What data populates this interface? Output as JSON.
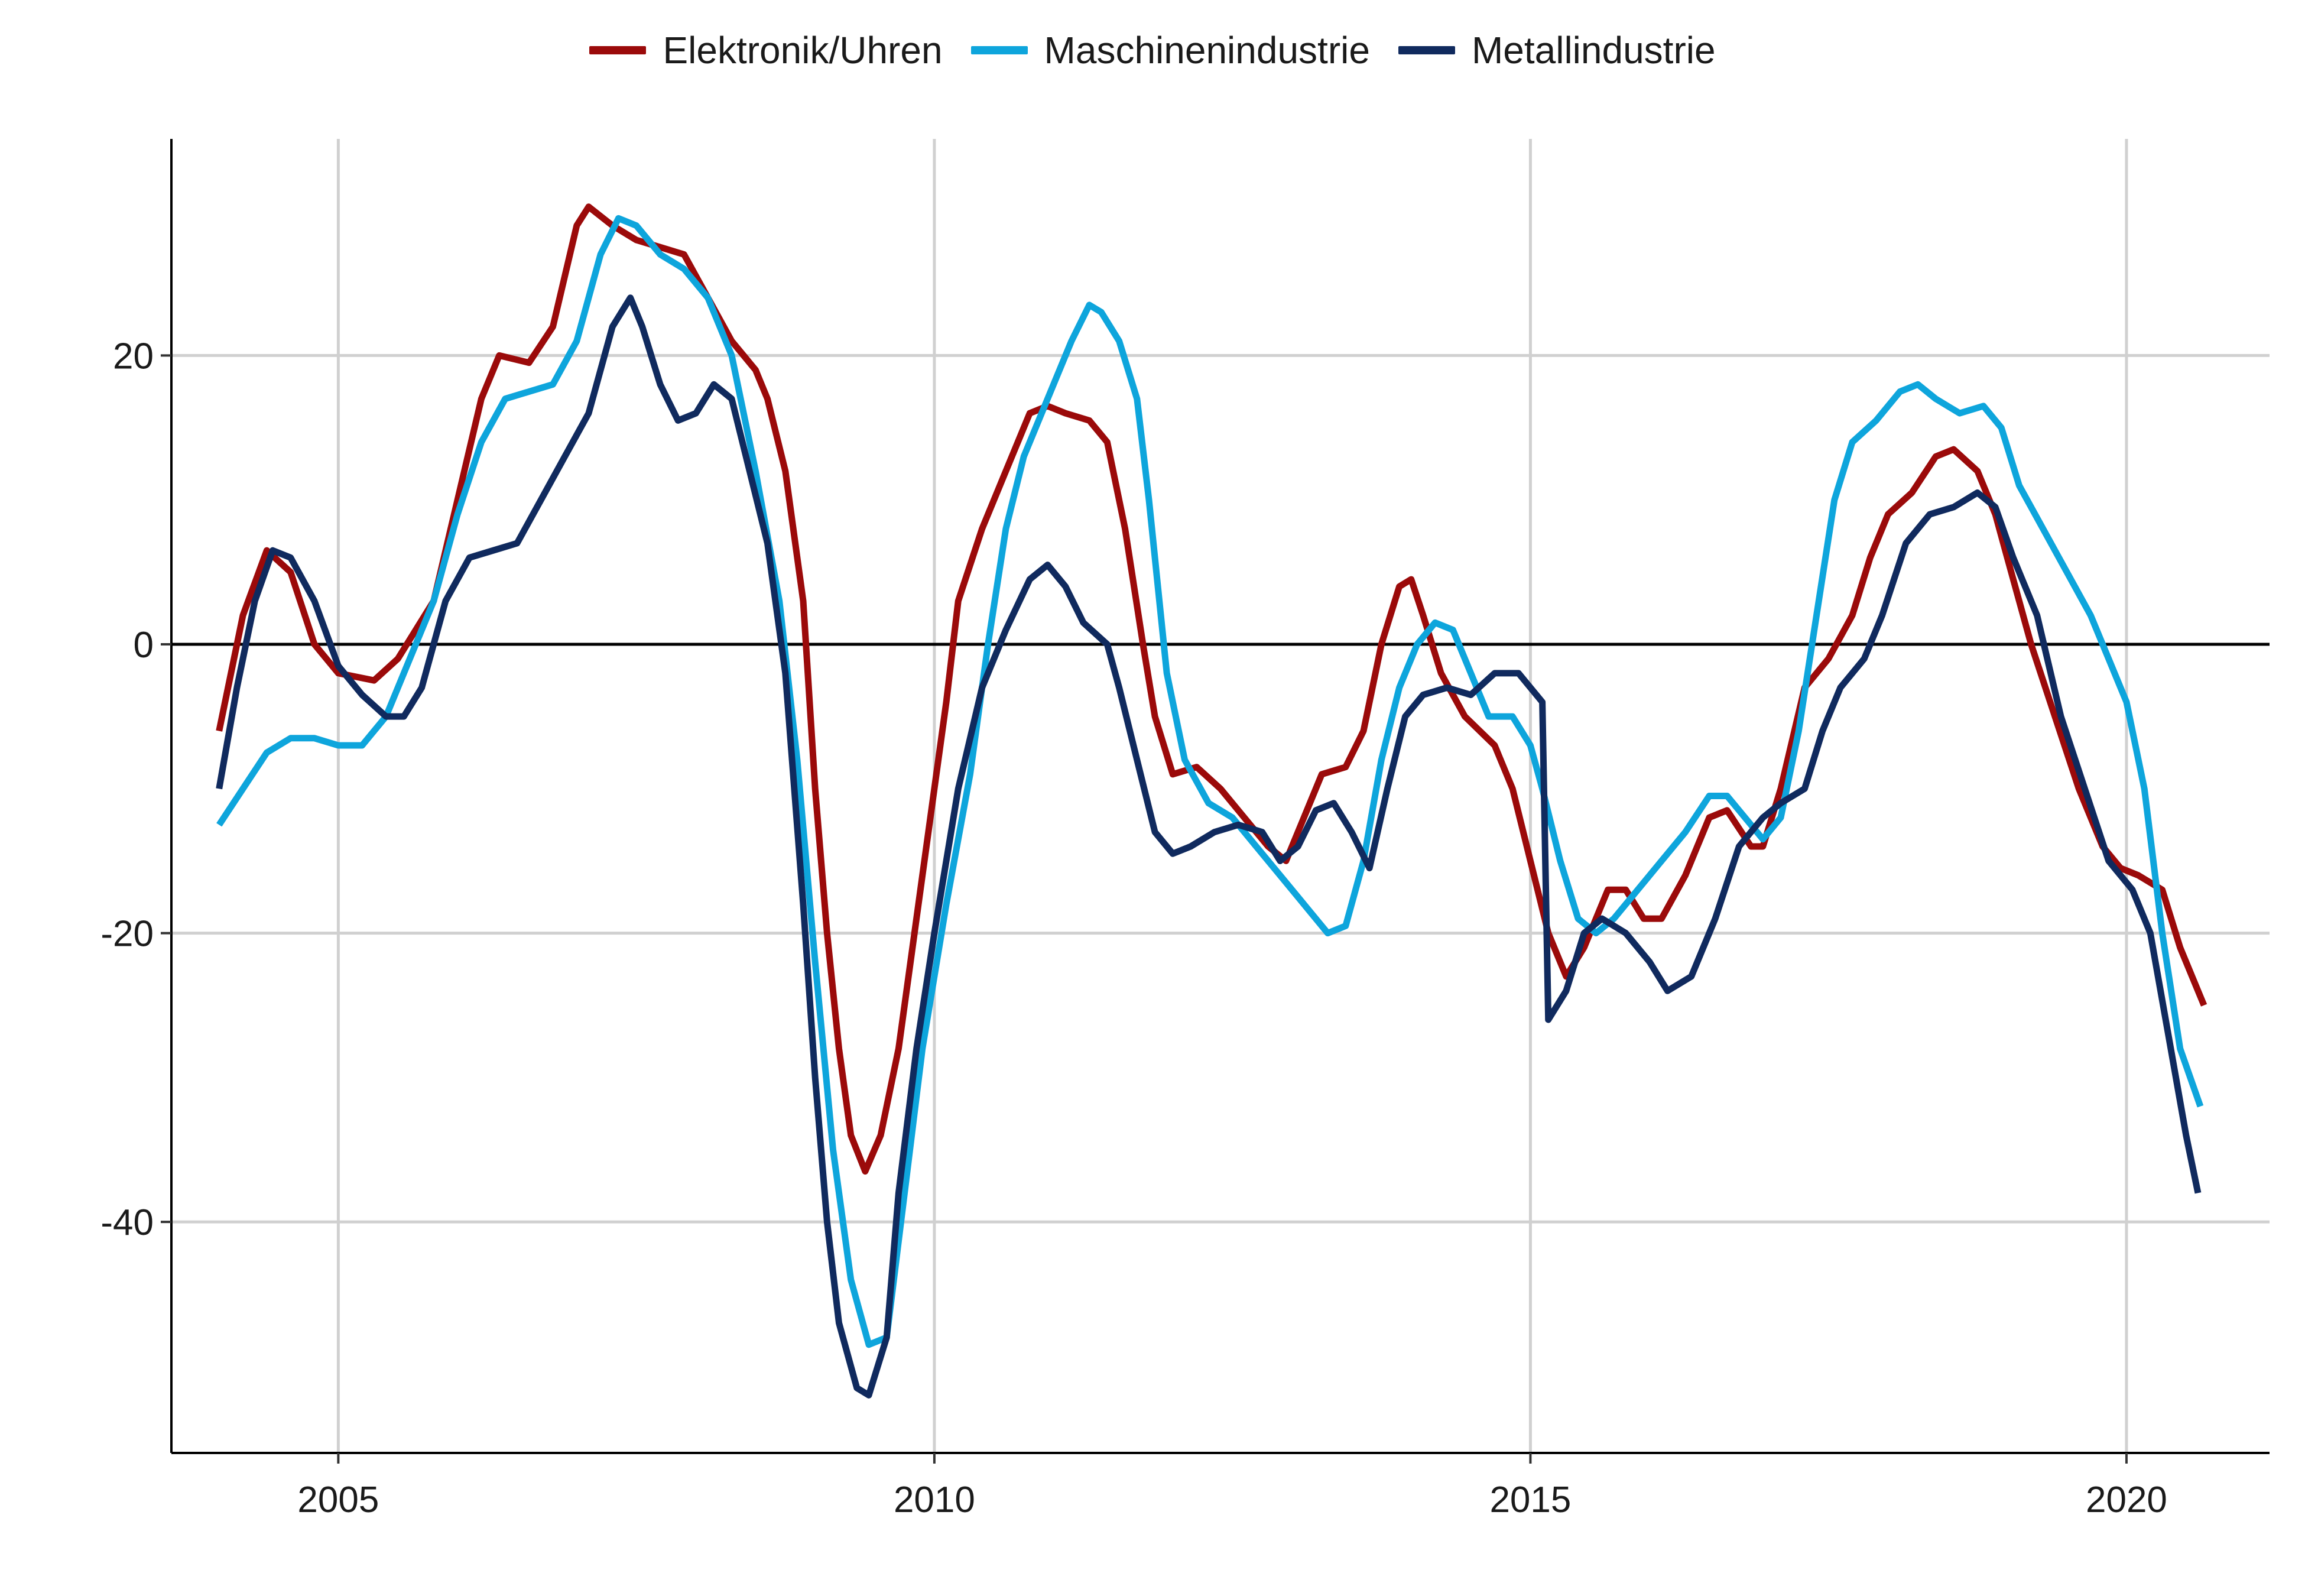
{
  "chart_data": {
    "type": "line",
    "title": "",
    "xlabel": "",
    "ylabel": "",
    "xlim": [
      2003.6,
      2021.2
    ],
    "ylim": [
      -56,
      35
    ],
    "x_ticks": [
      2005,
      2010,
      2015,
      2020
    ],
    "x_tick_labels": [
      "2005",
      "2010",
      "2015",
      "2020"
    ],
    "y_ticks": [
      -40,
      -20,
      0,
      20
    ],
    "y_tick_labels": [
      "-40",
      "-20",
      "0",
      "20"
    ],
    "grid": true,
    "zero_line": true,
    "legend_position": "top-center",
    "series": [
      {
        "name": "Elektronik/Uhren",
        "color": "#9b0a0a",
        "points": [
          [
            2004.0,
            -6
          ],
          [
            2004.2,
            2
          ],
          [
            2004.4,
            6.5
          ],
          [
            2004.6,
            5
          ],
          [
            2004.8,
            0
          ],
          [
            2005.0,
            -2
          ],
          [
            2005.3,
            -2.5
          ],
          [
            2005.5,
            -1
          ],
          [
            2005.8,
            3
          ],
          [
            2006.0,
            10
          ],
          [
            2006.2,
            17
          ],
          [
            2006.35,
            20
          ],
          [
            2006.6,
            19.5
          ],
          [
            2006.8,
            22
          ],
          [
            2007.0,
            29
          ],
          [
            2007.1,
            30.3
          ],
          [
            2007.3,
            29
          ],
          [
            2007.5,
            28
          ],
          [
            2007.7,
            27.5
          ],
          [
            2007.9,
            27
          ],
          [
            2008.1,
            24
          ],
          [
            2008.3,
            21
          ],
          [
            2008.5,
            19
          ],
          [
            2008.6,
            17
          ],
          [
            2008.75,
            12
          ],
          [
            2008.9,
            3
          ],
          [
            2009.0,
            -10
          ],
          [
            2009.1,
            -20
          ],
          [
            2009.2,
            -28
          ],
          [
            2009.3,
            -34
          ],
          [
            2009.42,
            -36.5
          ],
          [
            2009.55,
            -34
          ],
          [
            2009.7,
            -28
          ],
          [
            2009.9,
            -16
          ],
          [
            2010.1,
            -4
          ],
          [
            2010.2,
            3
          ],
          [
            2010.4,
            8
          ],
          [
            2010.6,
            12
          ],
          [
            2010.8,
            16
          ],
          [
            2010.95,
            16.5
          ],
          [
            2011.1,
            16
          ],
          [
            2011.3,
            15.5
          ],
          [
            2011.45,
            14
          ],
          [
            2011.6,
            8
          ],
          [
            2011.75,
            0
          ],
          [
            2011.85,
            -5
          ],
          [
            2012.0,
            -9
          ],
          [
            2012.2,
            -8.5
          ],
          [
            2012.4,
            -10
          ],
          [
            2012.6,
            -12
          ],
          [
            2012.8,
            -14
          ],
          [
            2012.95,
            -15
          ],
          [
            2013.1,
            -12
          ],
          [
            2013.25,
            -9
          ],
          [
            2013.45,
            -8.5
          ],
          [
            2013.6,
            -6
          ],
          [
            2013.75,
            0
          ],
          [
            2013.9,
            4
          ],
          [
            2014.0,
            4.5
          ],
          [
            2014.1,
            2
          ],
          [
            2014.25,
            -2
          ],
          [
            2014.45,
            -5
          ],
          [
            2014.7,
            -7
          ],
          [
            2014.85,
            -10
          ],
          [
            2015.0,
            -15
          ],
          [
            2015.15,
            -20
          ],
          [
            2015.3,
            -23
          ],
          [
            2015.45,
            -21
          ],
          [
            2015.65,
            -17
          ],
          [
            2015.8,
            -17
          ],
          [
            2015.95,
            -19
          ],
          [
            2016.1,
            -19
          ],
          [
            2016.3,
            -16
          ],
          [
            2016.5,
            -12
          ],
          [
            2016.65,
            -11.5
          ],
          [
            2016.85,
            -14
          ],
          [
            2016.95,
            -14
          ],
          [
            2017.1,
            -10
          ],
          [
            2017.3,
            -3
          ],
          [
            2017.5,
            -1
          ],
          [
            2017.7,
            2
          ],
          [
            2017.85,
            6
          ],
          [
            2018.0,
            9
          ],
          [
            2018.2,
            10.5
          ],
          [
            2018.4,
            13
          ],
          [
            2018.55,
            13.5
          ],
          [
            2018.75,
            12
          ],
          [
            2018.9,
            9
          ],
          [
            2019.0,
            6
          ],
          [
            2019.2,
            0
          ],
          [
            2019.4,
            -5
          ],
          [
            2019.6,
            -10
          ],
          [
            2019.8,
            -14
          ],
          [
            2019.95,
            -15.5
          ],
          [
            2020.1,
            -16
          ],
          [
            2020.3,
            -17
          ],
          [
            2020.45,
            -21
          ],
          [
            2020.65,
            -25
          ]
        ]
      },
      {
        "name": "Maschinenindustrie",
        "color": "#0ea5dc",
        "points": [
          [
            2004.0,
            -12.5
          ],
          [
            2004.2,
            -10
          ],
          [
            2004.4,
            -7.5
          ],
          [
            2004.6,
            -6.5
          ],
          [
            2004.8,
            -6.5
          ],
          [
            2005.0,
            -7
          ],
          [
            2005.2,
            -7
          ],
          [
            2005.4,
            -5
          ],
          [
            2005.6,
            -1
          ],
          [
            2005.8,
            3
          ],
          [
            2006.0,
            9
          ],
          [
            2006.2,
            14
          ],
          [
            2006.4,
            17
          ],
          [
            2006.6,
            17.5
          ],
          [
            2006.8,
            18
          ],
          [
            2007.0,
            21
          ],
          [
            2007.2,
            27
          ],
          [
            2007.35,
            29.5
          ],
          [
            2007.5,
            29
          ],
          [
            2007.7,
            27
          ],
          [
            2007.9,
            26
          ],
          [
            2008.1,
            24
          ],
          [
            2008.3,
            20
          ],
          [
            2008.5,
            12
          ],
          [
            2008.7,
            3
          ],
          [
            2008.85,
            -8
          ],
          [
            2009.0,
            -22
          ],
          [
            2009.15,
            -35
          ],
          [
            2009.3,
            -44
          ],
          [
            2009.45,
            -48.5
          ],
          [
            2009.6,
            -48
          ],
          [
            2009.75,
            -38
          ],
          [
            2009.9,
            -28
          ],
          [
            2010.1,
            -18
          ],
          [
            2010.3,
            -9
          ],
          [
            2010.45,
            0
          ],
          [
            2010.6,
            8
          ],
          [
            2010.75,
            13
          ],
          [
            2010.95,
            17
          ],
          [
            2011.15,
            21
          ],
          [
            2011.3,
            23.5
          ],
          [
            2011.4,
            23
          ],
          [
            2011.55,
            21
          ],
          [
            2011.7,
            17
          ],
          [
            2011.8,
            10
          ],
          [
            2011.95,
            -2
          ],
          [
            2012.1,
            -8
          ],
          [
            2012.3,
            -11
          ],
          [
            2012.5,
            -12
          ],
          [
            2012.7,
            -14
          ],
          [
            2012.9,
            -16
          ],
          [
            2013.1,
            -18
          ],
          [
            2013.3,
            -20
          ],
          [
            2013.45,
            -19.5
          ],
          [
            2013.6,
            -15
          ],
          [
            2013.75,
            -8
          ],
          [
            2013.9,
            -3
          ],
          [
            2014.05,
            0
          ],
          [
            2014.2,
            1.5
          ],
          [
            2014.35,
            1
          ],
          [
            2014.5,
            -2
          ],
          [
            2014.65,
            -5
          ],
          [
            2014.85,
            -5
          ],
          [
            2015.0,
            -7
          ],
          [
            2015.1,
            -10
          ],
          [
            2015.25,
            -15
          ],
          [
            2015.4,
            -19
          ],
          [
            2015.55,
            -20
          ],
          [
            2015.7,
            -19
          ],
          [
            2015.9,
            -17
          ],
          [
            2016.1,
            -15
          ],
          [
            2016.3,
            -13
          ],
          [
            2016.5,
            -10.5
          ],
          [
            2016.65,
            -10.5
          ],
          [
            2016.8,
            -12
          ],
          [
            2016.95,
            -13.5
          ],
          [
            2017.1,
            -12
          ],
          [
            2017.25,
            -6
          ],
          [
            2017.4,
            2
          ],
          [
            2017.55,
            10
          ],
          [
            2017.7,
            14
          ],
          [
            2017.9,
            15.5
          ],
          [
            2018.1,
            17.5
          ],
          [
            2018.25,
            18
          ],
          [
            2018.4,
            17
          ],
          [
            2018.6,
            16
          ],
          [
            2018.8,
            16.5
          ],
          [
            2018.95,
            15
          ],
          [
            2019.1,
            11
          ],
          [
            2019.3,
            8
          ],
          [
            2019.5,
            5
          ],
          [
            2019.7,
            2
          ],
          [
            2019.85,
            -1
          ],
          [
            2020.0,
            -4
          ],
          [
            2020.15,
            -10
          ],
          [
            2020.3,
            -20
          ],
          [
            2020.45,
            -28
          ],
          [
            2020.62,
            -32
          ]
        ]
      },
      {
        "name": "Metallindustrie",
        "color": "#102a5e",
        "points": [
          [
            2004.0,
            -10
          ],
          [
            2004.15,
            -3
          ],
          [
            2004.3,
            3
          ],
          [
            2004.45,
            6.5
          ],
          [
            2004.6,
            6
          ],
          [
            2004.8,
            3
          ],
          [
            2005.0,
            -1.5
          ],
          [
            2005.2,
            -3.5
          ],
          [
            2005.4,
            -5
          ],
          [
            2005.55,
            -5
          ],
          [
            2005.7,
            -3
          ],
          [
            2005.9,
            3
          ],
          [
            2006.1,
            6
          ],
          [
            2006.3,
            6.5
          ],
          [
            2006.5,
            7
          ],
          [
            2006.7,
            10
          ],
          [
            2006.9,
            13
          ],
          [
            2007.1,
            16
          ],
          [
            2007.3,
            22
          ],
          [
            2007.45,
            24
          ],
          [
            2007.55,
            22
          ],
          [
            2007.7,
            18
          ],
          [
            2007.85,
            15.5
          ],
          [
            2008.0,
            16
          ],
          [
            2008.15,
            18
          ],
          [
            2008.3,
            17
          ],
          [
            2008.45,
            12
          ],
          [
            2008.6,
            7
          ],
          [
            2008.75,
            -2
          ],
          [
            2008.9,
            -18
          ],
          [
            2009.0,
            -30
          ],
          [
            2009.1,
            -40
          ],
          [
            2009.2,
            -47
          ],
          [
            2009.35,
            -51.5
          ],
          [
            2009.45,
            -52
          ],
          [
            2009.6,
            -48
          ],
          [
            2009.7,
            -38
          ],
          [
            2009.85,
            -28
          ],
          [
            2010.0,
            -20
          ],
          [
            2010.2,
            -10
          ],
          [
            2010.4,
            -3
          ],
          [
            2010.6,
            1
          ],
          [
            2010.8,
            4.5
          ],
          [
            2010.95,
            5.5
          ],
          [
            2011.1,
            4
          ],
          [
            2011.25,
            1.5
          ],
          [
            2011.45,
            0
          ],
          [
            2011.55,
            -3
          ],
          [
            2011.7,
            -8
          ],
          [
            2011.85,
            -13
          ],
          [
            2012.0,
            -14.5
          ],
          [
            2012.15,
            -14
          ],
          [
            2012.35,
            -13
          ],
          [
            2012.55,
            -12.5
          ],
          [
            2012.75,
            -13
          ],
          [
            2012.9,
            -15
          ],
          [
            2013.05,
            -14
          ],
          [
            2013.2,
            -11.5
          ],
          [
            2013.35,
            -11
          ],
          [
            2013.5,
            -13
          ],
          [
            2013.65,
            -15.5
          ],
          [
            2013.8,
            -10
          ],
          [
            2013.95,
            -5
          ],
          [
            2014.1,
            -3.5
          ],
          [
            2014.3,
            -3
          ],
          [
            2014.5,
            -3.5
          ],
          [
            2014.7,
            -2
          ],
          [
            2014.9,
            -2
          ],
          [
            2015.1,
            -4
          ],
          [
            2015.15,
            -26
          ],
          [
            2015.3,
            -24
          ],
          [
            2015.45,
            -20
          ],
          [
            2015.6,
            -19
          ],
          [
            2015.8,
            -20
          ],
          [
            2016.0,
            -22
          ],
          [
            2016.15,
            -24
          ],
          [
            2016.35,
            -23
          ],
          [
            2016.55,
            -19
          ],
          [
            2016.75,
            -14
          ],
          [
            2016.95,
            -12
          ],
          [
            2017.1,
            -11
          ],
          [
            2017.3,
            -10
          ],
          [
            2017.45,
            -6
          ],
          [
            2017.6,
            -3
          ],
          [
            2017.8,
            -1
          ],
          [
            2017.95,
            2
          ],
          [
            2018.15,
            7
          ],
          [
            2018.35,
            9
          ],
          [
            2018.55,
            9.5
          ],
          [
            2018.75,
            10.5
          ],
          [
            2018.9,
            9.5
          ],
          [
            2019.05,
            6
          ],
          [
            2019.25,
            2
          ],
          [
            2019.45,
            -5
          ],
          [
            2019.65,
            -10
          ],
          [
            2019.85,
            -15
          ],
          [
            2020.05,
            -17
          ],
          [
            2020.2,
            -20
          ],
          [
            2020.35,
            -27
          ],
          [
            2020.5,
            -34
          ],
          [
            2020.6,
            -38
          ]
        ]
      }
    ]
  }
}
